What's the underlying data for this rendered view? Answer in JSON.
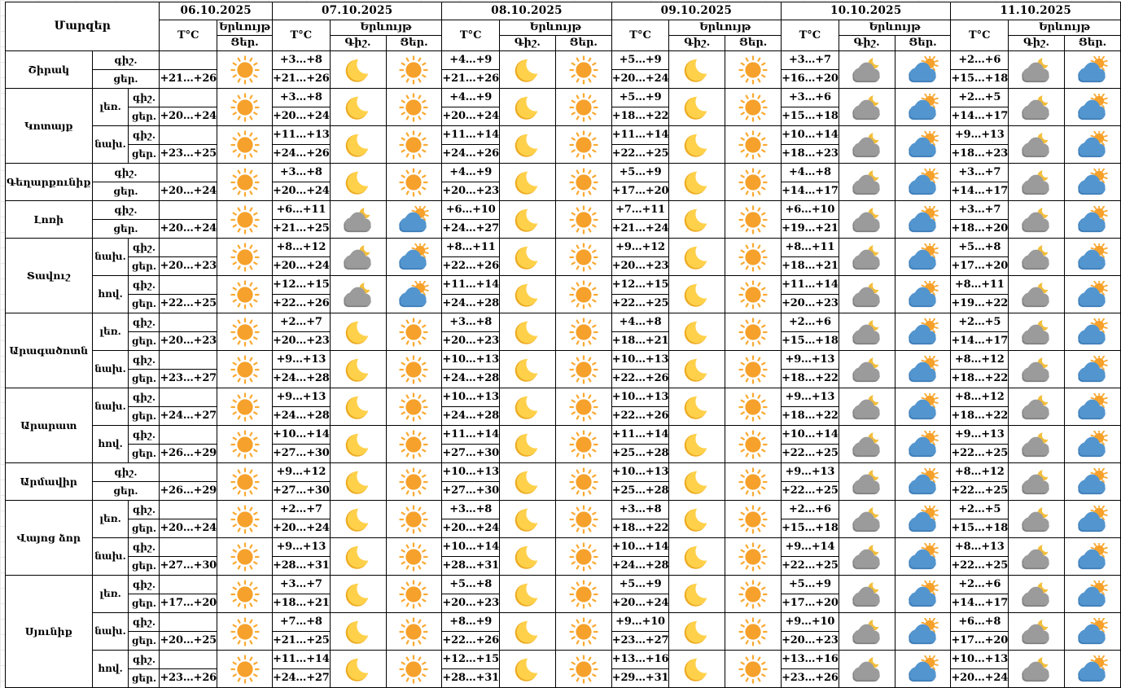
{
  "chart_data": {
    "type": "table",
    "labels": {
      "regions_header": "Մարզեր",
      "temp": "T°C",
      "phenomenon": "Երևույթ",
      "night_col": "Գիշ.",
      "day_col": "Ցեր.",
      "night_row": "գիշ.",
      "day_row": "ցեր."
    },
    "dates": [
      "06.10.2025",
      "07.10.2025",
      "08.10.2025",
      "09.10.2025",
      "10.10.2025",
      "11.10.2025"
    ],
    "first_date_has_night_column": false,
    "icons": {
      "sun": "clear-sunny-day",
      "moon": "clear-night-crescent",
      "cloud-moon": "cloudy-night-with-moon",
      "cloud-sun": "cloudy-day-with-sun"
    },
    "colors": {
      "sun_core": "#F6A12B",
      "sun_rays": "#F9AA33",
      "moon_yellow": "#FFD14B",
      "moon_shade": "#EDAB24",
      "cloud_gray": "#9B9B9B",
      "cloud_gray_dark": "#808080",
      "cloud_blue": "#5395CE",
      "cloud_blue_dark": "#3E7DB8",
      "border": "#000000"
    },
    "regions": [
      {
        "name": "Շիրակ",
        "zones": [
          {
            "zone": null,
            "first": {
              "day": "+21…+26",
              "icon": "sun"
            },
            "days": [
              {
                "n": "+3…+8",
                "d": "+21…+26",
                "ni": "moon",
                "di": "sun"
              },
              {
                "n": "+4…+9",
                "d": "+21…+26",
                "ni": "moon",
                "di": "sun"
              },
              {
                "n": "+5…+9",
                "d": "+20…+24",
                "ni": "moon",
                "di": "sun"
              },
              {
                "n": "+3…+7",
                "d": "+16…+20",
                "ni": "cloud-moon",
                "di": "cloud-sun"
              },
              {
                "n": "+2…+6",
                "d": "+15…+18",
                "ni": "cloud-moon",
                "di": "cloud-sun"
              }
            ]
          }
        ]
      },
      {
        "name": "Կոտայք",
        "zones": [
          {
            "zone": "լեռ.",
            "first": {
              "day": "+20…+24",
              "icon": "sun"
            },
            "days": [
              {
                "n": "+3…+8",
                "d": "+20…+24",
                "ni": "moon",
                "di": "sun"
              },
              {
                "n": "+4…+9",
                "d": "+20…+24",
                "ni": "moon",
                "di": "sun"
              },
              {
                "n": "+5…+9",
                "d": "+18…+22",
                "ni": "moon",
                "di": "sun"
              },
              {
                "n": "+3…+6",
                "d": "+15…+18",
                "ni": "cloud-moon",
                "di": "cloud-sun"
              },
              {
                "n": "+2…+5",
                "d": "+14…+17",
                "ni": "cloud-moon",
                "di": "cloud-sun"
              }
            ]
          },
          {
            "zone": "նախ.",
            "first": {
              "day": "+23…+25",
              "icon": "sun"
            },
            "days": [
              {
                "n": "+11…+13",
                "d": "+24…+26",
                "ni": "moon",
                "di": "sun"
              },
              {
                "n": "+11…+14",
                "d": "+24…+26",
                "ni": "moon",
                "di": "sun"
              },
              {
                "n": "+11…+14",
                "d": "+22…+25",
                "ni": "moon",
                "di": "sun"
              },
              {
                "n": "+10…+14",
                "d": "+18…+23",
                "ni": "cloud-moon",
                "di": "cloud-sun"
              },
              {
                "n": "+9…+13",
                "d": "+18…+23",
                "ni": "cloud-moon",
                "di": "cloud-sun"
              }
            ]
          }
        ]
      },
      {
        "name": "Գեղարքունիք",
        "zones": [
          {
            "zone": null,
            "first": {
              "day": "+20…+24",
              "icon": "sun"
            },
            "days": [
              {
                "n": "+3…+8",
                "d": "+20…+24",
                "ni": "moon",
                "di": "sun"
              },
              {
                "n": "+4…+9",
                "d": "+20…+23",
                "ni": "moon",
                "di": "sun"
              },
              {
                "n": "+5…+9",
                "d": "+17…+20",
                "ni": "moon",
                "di": "sun"
              },
              {
                "n": "+4…+8",
                "d": "+14…+17",
                "ni": "cloud-moon",
                "di": "cloud-sun"
              },
              {
                "n": "+3…+7",
                "d": "+14…+17",
                "ni": "cloud-moon",
                "di": "cloud-sun"
              }
            ]
          }
        ]
      },
      {
        "name": "Լոռի",
        "zones": [
          {
            "zone": null,
            "first": {
              "day": "+20…+24",
              "icon": "sun"
            },
            "days": [
              {
                "n": "+6…+11",
                "d": "+21…+25",
                "ni": "cloud-moon",
                "di": "cloud-sun"
              },
              {
                "n": "+6…+10",
                "d": "+24…+27",
                "ni": "moon",
                "di": "sun"
              },
              {
                "n": "+7…+11",
                "d": "+21…+24",
                "ni": "moon",
                "di": "sun"
              },
              {
                "n": "+6…+10",
                "d": "+19…+21",
                "ni": "cloud-moon",
                "di": "cloud-sun"
              },
              {
                "n": "+3…+7",
                "d": "+18…+20",
                "ni": "cloud-moon",
                "di": "cloud-sun"
              }
            ]
          }
        ]
      },
      {
        "name": "Տավուշ",
        "zones": [
          {
            "zone": "նախ.",
            "first": {
              "day": "+20…+23",
              "icon": "sun"
            },
            "days": [
              {
                "n": "+8…+12",
                "d": "+20…+24",
                "ni": "cloud-moon",
                "di": "cloud-sun"
              },
              {
                "n": "+8…+11",
                "d": "+22…+26",
                "ni": "moon",
                "di": "sun"
              },
              {
                "n": "+9…+12",
                "d": "+20…+23",
                "ni": "moon",
                "di": "sun"
              },
              {
                "n": "+8…+11",
                "d": "+18…+21",
                "ni": "cloud-moon",
                "di": "cloud-sun"
              },
              {
                "n": "+5…+8",
                "d": "+17…+20",
                "ni": "cloud-moon",
                "di": "cloud-sun"
              }
            ]
          },
          {
            "zone": "հով.",
            "first": {
              "day": "+22…+25",
              "icon": "sun"
            },
            "days": [
              {
                "n": "+12…+15",
                "d": "+22…+26",
                "ni": "cloud-moon",
                "di": "cloud-sun"
              },
              {
                "n": "+11…+14",
                "d": "+24…+28",
                "ni": "moon",
                "di": "sun"
              },
              {
                "n": "+12…+15",
                "d": "+22…+25",
                "ni": "moon",
                "di": "sun"
              },
              {
                "n": "+11…+14",
                "d": "+20…+23",
                "ni": "cloud-moon",
                "di": "cloud-sun"
              },
              {
                "n": "+8…+11",
                "d": "+19…+22",
                "ni": "cloud-moon",
                "di": "cloud-sun"
              }
            ]
          }
        ]
      },
      {
        "name": "Արագածոտն",
        "zones": [
          {
            "zone": "լեռ.",
            "first": {
              "day": "+20…+23",
              "icon": "sun"
            },
            "days": [
              {
                "n": "+2…+7",
                "d": "+20…+23",
                "ni": "moon",
                "di": "sun"
              },
              {
                "n": "+3…+8",
                "d": "+20…+23",
                "ni": "moon",
                "di": "sun"
              },
              {
                "n": "+4…+8",
                "d": "+18…+21",
                "ni": "moon",
                "di": "sun"
              },
              {
                "n": "+2…+6",
                "d": "+15…+18",
                "ni": "cloud-moon",
                "di": "cloud-sun"
              },
              {
                "n": "+2…+5",
                "d": "+14…+17",
                "ni": "cloud-moon",
                "di": "cloud-sun"
              }
            ]
          },
          {
            "zone": "նախ.",
            "first": {
              "day": "+23…+27",
              "icon": "sun"
            },
            "days": [
              {
                "n": "+9…+13",
                "d": "+24…+28",
                "ni": "moon",
                "di": "sun"
              },
              {
                "n": "+10…+13",
                "d": "+24…+28",
                "ni": "moon",
                "di": "sun"
              },
              {
                "n": "+10…+13",
                "d": "+22…+26",
                "ni": "moon",
                "di": "sun"
              },
              {
                "n": "+9…+13",
                "d": "+18…+22",
                "ni": "cloud-moon",
                "di": "cloud-sun"
              },
              {
                "n": "+8…+12",
                "d": "+18…+22",
                "ni": "cloud-moon",
                "di": "cloud-sun"
              }
            ]
          }
        ]
      },
      {
        "name": "Արարատ",
        "zones": [
          {
            "zone": "նախ.",
            "first": {
              "day": "+24…+27",
              "icon": "sun"
            },
            "days": [
              {
                "n": "+9…+13",
                "d": "+24…+28",
                "ni": "moon",
                "di": "sun"
              },
              {
                "n": "+10…+13",
                "d": "+24…+28",
                "ni": "moon",
                "di": "sun"
              },
              {
                "n": "+10…+13",
                "d": "+22…+26",
                "ni": "moon",
                "di": "sun"
              },
              {
                "n": "+9…+13",
                "d": "+18…+22",
                "ni": "cloud-moon",
                "di": "cloud-sun"
              },
              {
                "n": "+8…+12",
                "d": "+18…+22",
                "ni": "cloud-moon",
                "di": "cloud-sun"
              }
            ]
          },
          {
            "zone": "հով.",
            "first": {
              "day": "+26…+29",
              "icon": "sun"
            },
            "days": [
              {
                "n": "+10…+14",
                "d": "+27…+30",
                "ni": "moon",
                "di": "sun"
              },
              {
                "n": "+11…+14",
                "d": "+27…+30",
                "ni": "moon",
                "di": "sun"
              },
              {
                "n": "+11…+14",
                "d": "+25…+28",
                "ni": "moon",
                "di": "sun"
              },
              {
                "n": "+10…+14",
                "d": "+22…+25",
                "ni": "cloud-moon",
                "di": "cloud-sun"
              },
              {
                "n": "+9…+13",
                "d": "+22…+25",
                "ni": "cloud-moon",
                "di": "cloud-sun"
              }
            ]
          }
        ]
      },
      {
        "name": "Արմավիր",
        "zones": [
          {
            "zone": null,
            "first": {
              "day": "+26…+29",
              "icon": "sun"
            },
            "days": [
              {
                "n": "+9…+12",
                "d": "+27…+30",
                "ni": "moon",
                "di": "sun"
              },
              {
                "n": "+10…+13",
                "d": "+27…+30",
                "ni": "moon",
                "di": "sun"
              },
              {
                "n": "+10…+13",
                "d": "+25…+28",
                "ni": "moon",
                "di": "sun"
              },
              {
                "n": "+9…+13",
                "d": "+22…+25",
                "ni": "cloud-moon",
                "di": "cloud-sun"
              },
              {
                "n": "+8…+12",
                "d": "+22…+25",
                "ni": "cloud-moon",
                "di": "cloud-sun"
              }
            ]
          }
        ]
      },
      {
        "name": "Վայոց ձոր",
        "zones": [
          {
            "zone": "լեռ.",
            "first": {
              "day": "+20…+24",
              "icon": "sun"
            },
            "days": [
              {
                "n": "+2…+7",
                "d": "+20…+24",
                "ni": "moon",
                "di": "sun"
              },
              {
                "n": "+3…+8",
                "d": "+20…+24",
                "ni": "moon",
                "di": "sun"
              },
              {
                "n": "+3…+8",
                "d": "+18…+22",
                "ni": "moon",
                "di": "sun"
              },
              {
                "n": "+2…+6",
                "d": "+15…+18",
                "ni": "cloud-moon",
                "di": "cloud-sun"
              },
              {
                "n": "+2…+5",
                "d": "+15…+18",
                "ni": "cloud-moon",
                "di": "cloud-sun"
              }
            ]
          },
          {
            "zone": "նախ.",
            "first": {
              "day": "+27…+30",
              "icon": "sun"
            },
            "days": [
              {
                "n": "+9…+13",
                "d": "+28…+31",
                "ni": "moon",
                "di": "sun"
              },
              {
                "n": "+10…+14",
                "d": "+28…+31",
                "ni": "moon",
                "di": "sun"
              },
              {
                "n": "+10…+14",
                "d": "+24…+28",
                "ni": "moon",
                "di": "sun"
              },
              {
                "n": "+9…+14",
                "d": "+22…+25",
                "ni": "cloud-moon",
                "di": "cloud-sun"
              },
              {
                "n": "+8…+13",
                "d": "+22…+25",
                "ni": "cloud-moon",
                "di": "cloud-sun"
              }
            ]
          }
        ]
      },
      {
        "name": "Սյունիք",
        "zones": [
          {
            "zone": "լեռ.",
            "first": {
              "day": "+17…+20",
              "icon": "sun"
            },
            "days": [
              {
                "n": "+3…+7",
                "d": "+18…+21",
                "ni": "moon",
                "di": "sun"
              },
              {
                "n": "+5…+8",
                "d": "+20…+23",
                "ni": "moon",
                "di": "sun"
              },
              {
                "n": "+5…+9",
                "d": "+20…+24",
                "ni": "moon",
                "di": "sun"
              },
              {
                "n": "+5…+9",
                "d": "+17…+20",
                "ni": "cloud-moon",
                "di": "cloud-sun"
              },
              {
                "n": "+2…+6",
                "d": "+14…+17",
                "ni": "cloud-moon",
                "di": "cloud-sun"
              }
            ]
          },
          {
            "zone": "նախ.",
            "first": {
              "day": "+20…+25",
              "icon": "sun"
            },
            "days": [
              {
                "n": "+7…+8",
                "d": "+21…+25",
                "ni": "moon",
                "di": "sun"
              },
              {
                "n": "+8…+9",
                "d": "+22…+26",
                "ni": "moon",
                "di": "sun"
              },
              {
                "n": "+9…+10",
                "d": "+23…+27",
                "ni": "moon",
                "di": "sun"
              },
              {
                "n": "+9…+10",
                "d": "+20…+23",
                "ni": "cloud-moon",
                "di": "cloud-sun"
              },
              {
                "n": "+6…+8",
                "d": "+17…+20",
                "ni": "cloud-moon",
                "di": "cloud-sun"
              }
            ]
          },
          {
            "zone": "հով.",
            "first": {
              "day": "+23…+26",
              "icon": "sun"
            },
            "days": [
              {
                "n": "+11…+14",
                "d": "+24…+27",
                "ni": "moon",
                "di": "sun"
              },
              {
                "n": "+12…+15",
                "d": "+28…+31",
                "ni": "moon",
                "di": "sun"
              },
              {
                "n": "+13…+16",
                "d": "+29…+31",
                "ni": "moon",
                "di": "sun"
              },
              {
                "n": "+13…+16",
                "d": "+23…+26",
                "ni": "cloud-moon",
                "di": "cloud-sun"
              },
              {
                "n": "+10…+13",
                "d": "+20…+24",
                "ni": "cloud-moon",
                "di": "cloud-sun"
              }
            ]
          }
        ]
      }
    ]
  }
}
